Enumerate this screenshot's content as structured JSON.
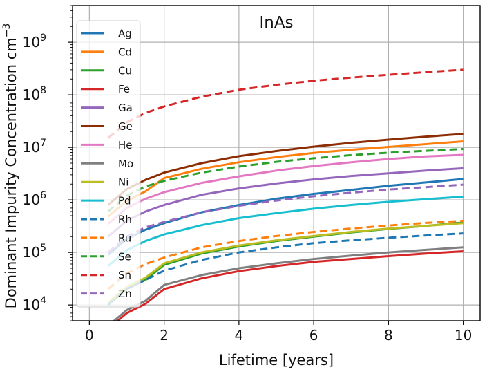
{
  "chart_data": {
    "type": "line",
    "title": "InAs",
    "xlabel": "Lifetime [years]",
    "ylabel_main": "Dominant Impurity Concentration cm",
    "ylabel_sup": "−3",
    "xlim": [
      -0.45,
      10.45
    ],
    "ylim": [
      5000,
      5000000000
    ],
    "yscale": "log",
    "grid": true,
    "legend_position": "upper-left",
    "xticks": [
      {
        "value": 0,
        "label": "0"
      },
      {
        "value": 2,
        "label": "2"
      },
      {
        "value": 4,
        "label": "4"
      },
      {
        "value": 6,
        "label": "6"
      },
      {
        "value": 8,
        "label": "8"
      },
      {
        "value": 10,
        "label": "10"
      }
    ],
    "yticks": [
      {
        "value": 10000,
        "base": "10",
        "exp": "4"
      },
      {
        "value": 100000,
        "base": "10",
        "exp": "5"
      },
      {
        "value": 1000000,
        "base": "10",
        "exp": "6"
      },
      {
        "value": 10000000,
        "base": "10",
        "exp": "7"
      },
      {
        "value": 100000000,
        "base": "10",
        "exp": "8"
      },
      {
        "value": 1000000000,
        "base": "10",
        "exp": "9"
      }
    ],
    "x": [
      0.5,
      1,
      1.5,
      2,
      3,
      4,
      5,
      6,
      7,
      8,
      9,
      10
    ],
    "series": [
      {
        "name": "Ag",
        "color": "#1f77b4",
        "dash": "solid",
        "values": [
          90000,
          180000,
          270000,
          360000,
          580000,
          800000,
          1050000,
          1300000,
          1550000,
          1850000,
          2150000,
          2500000
        ]
      },
      {
        "name": "Cd",
        "color": "#ff7f0e",
        "dash": "solid",
        "values": [
          480000,
          960000,
          1450000,
          2600000,
          3900000,
          5200000,
          6500000,
          7800000,
          9000000,
          10200000,
          11500000,
          13000000
        ]
      },
      {
        "name": "Cu",
        "color": "#2ca02c",
        "dash": "solid",
        "values": [
          10000,
          20000,
          30000,
          58000,
          95000,
          130000,
          165000,
          200000,
          240000,
          280000,
          320000,
          370000
        ]
      },
      {
        "name": "Fe",
        "color": "#d62728",
        "dash": "solid",
        "values": [
          3500,
          7000,
          10500,
          20000,
          32000,
          44000,
          55000,
          66000,
          75000,
          85000,
          95000,
          105000
        ]
      },
      {
        "name": "Ga",
        "color": "#9467bd",
        "dash": "solid",
        "values": [
          200000,
          400000,
          600000,
          800000,
          1250000,
          1650000,
          2050000,
          2450000,
          2850000,
          3200000,
          3600000,
          4000000
        ]
      },
      {
        "name": "Ge",
        "color": "#8c2d04",
        "dash": "solid",
        "values": [
          800000,
          1600000,
          2400000,
          3300000,
          5000000,
          6800000,
          8500000,
          10300000,
          12200000,
          14000000,
          16000000,
          18000000
        ]
      },
      {
        "name": "He",
        "color": "#e377c2",
        "dash": "solid",
        "values": [
          350000,
          700000,
          1050000,
          1400000,
          2100000,
          2800000,
          3600000,
          4400000,
          5200000,
          6000000,
          6700000,
          7200000
        ]
      },
      {
        "name": "Mo",
        "color": "#7f7f7f",
        "dash": "solid",
        "values": [
          4000,
          8000,
          12000,
          24000,
          37000,
          50000,
          62000,
          75000,
          87000,
          100000,
          112000,
          125000
        ]
      },
      {
        "name": "Ni",
        "color": "#bcbd22",
        "dash": "solid",
        "values": [
          11000,
          22000,
          33000,
          62000,
          100000,
          135000,
          170000,
          205000,
          245000,
          285000,
          320000,
          360000
        ]
      },
      {
        "name": "Pd",
        "color": "#17becf",
        "dash": "solid",
        "values": [
          55000,
          110000,
          165000,
          220000,
          330000,
          450000,
          560000,
          680000,
          800000,
          920000,
          1030000,
          1150000
        ]
      },
      {
        "name": "Rh",
        "color": "#1f77b4",
        "dash": "dashed",
        "values": [
          10000,
          20000,
          30000,
          45000,
          72000,
          100000,
          125000,
          150000,
          170000,
          190000,
          210000,
          230000
        ]
      },
      {
        "name": "Ru",
        "color": "#ff7f0e",
        "dash": "dashed",
        "values": [
          20000,
          40000,
          60000,
          80000,
          125000,
          165000,
          205000,
          245000,
          285000,
          325000,
          365000,
          400000
        ]
      },
      {
        "name": "Se",
        "color": "#2ca02c",
        "dash": "dashed",
        "values": [
          600000,
          1200000,
          1800000,
          2300000,
          3300000,
          4300000,
          5300000,
          6200000,
          7100000,
          7900000,
          8600000,
          9300000
        ]
      },
      {
        "name": "Sn",
        "color": "#d62728",
        "dash": "dashed",
        "values": [
          15000000,
          30000000,
          45000000,
          60000000,
          92000000,
          125000000,
          155000000,
          185000000,
          213000000,
          240000000,
          270000000,
          300000000
        ]
      },
      {
        "name": "Zn",
        "color": "#9467bd",
        "dash": "dashed",
        "values": [
          100000,
          200000,
          300000,
          380000,
          580000,
          770000,
          970000,
          1170000,
          1370000,
          1570000,
          1750000,
          1950000
        ]
      }
    ]
  }
}
